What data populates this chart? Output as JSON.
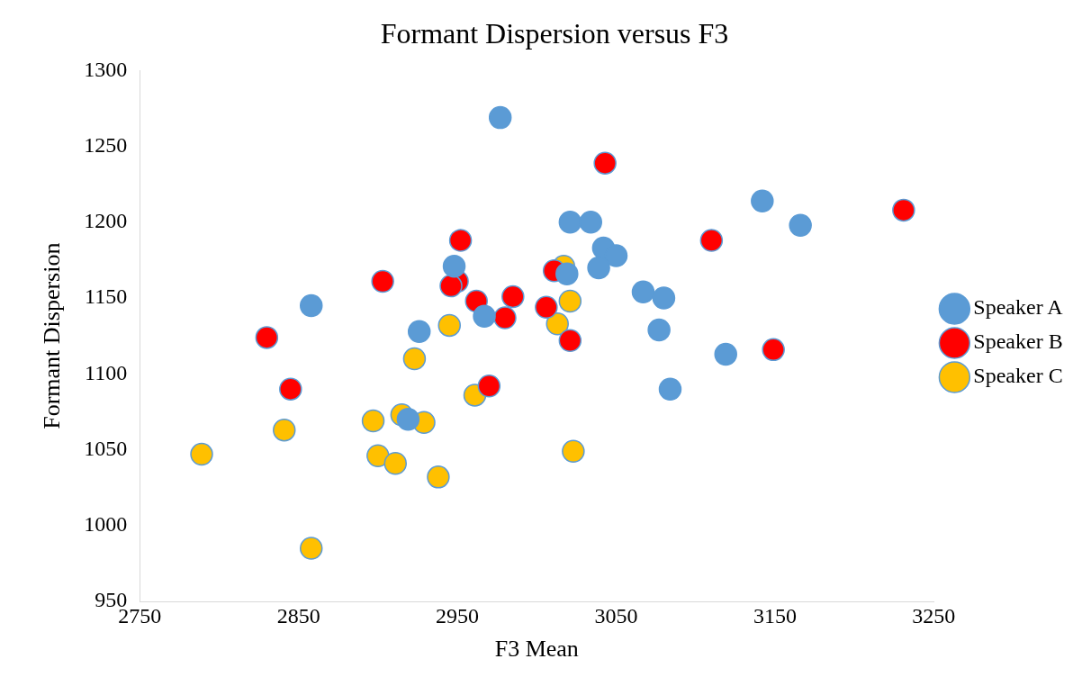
{
  "chart_data": {
    "type": "scatter",
    "title": "Formant Dispersion versus F3",
    "xlabel": "F3 Mean",
    "ylabel": "Formant Dispersion",
    "xlim": [
      2750,
      3250
    ],
    "xticks": [
      2750,
      2850,
      2950,
      3050,
      3150,
      3250
    ],
    "ylim": [
      950,
      1300
    ],
    "yticks": [
      950,
      1000,
      1050,
      1100,
      1150,
      1200,
      1250,
      1300
    ],
    "grid": false,
    "legend": "right",
    "marker": "circle",
    "series": [
      {
        "name": "Speaker A",
        "color": "#5b9bd5",
        "x": [
          2977,
          2858,
          2926,
          2948,
          2967,
          2919,
          3021,
          3034,
          3019,
          3042,
          3050,
          3039,
          3067,
          3080,
          3077,
          3084,
          3119,
          3142,
          3166
        ],
        "values": [
          1269,
          1145,
          1128,
          1171,
          1138,
          1070,
          1200,
          1200,
          1166,
          1183,
          1178,
          1170,
          1154,
          1150,
          1129,
          1090,
          1113,
          1214,
          1198
        ]
      },
      {
        "name": "Speaker B",
        "color": "#ff0000",
        "x": [
          2830,
          2845,
          2903,
          2952,
          2950,
          2946,
          2962,
          2980,
          2985,
          3006,
          3011,
          3021,
          2970,
          3043,
          3110,
          3149,
          3231
        ],
        "values": [
          1124,
          1090,
          1161,
          1188,
          1161,
          1158,
          1148,
          1137,
          1151,
          1144,
          1168,
          1122,
          1092,
          1239,
          1188,
          1116,
          1208
        ]
      },
      {
        "name": "Speaker C",
        "color": "#ffc000",
        "x": [
          2789,
          2841,
          2858,
          2897,
          2900,
          2911,
          2915,
          2929,
          2938,
          2923,
          2945,
          2961,
          3017,
          3021,
          3013,
          3023
        ],
        "values": [
          1047,
          1063,
          985,
          1069,
          1046,
          1041,
          1073,
          1068,
          1032,
          1110,
          1132,
          1086,
          1171,
          1148,
          1133,
          1049
        ]
      }
    ]
  }
}
